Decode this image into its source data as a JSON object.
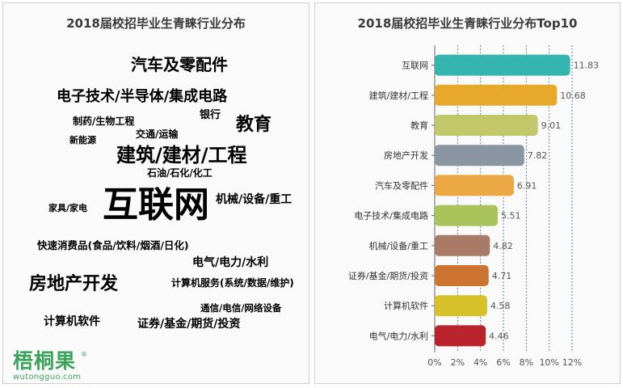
{
  "left": {
    "title": "2018届校招毕业生青睐行业分布",
    "words": [
      {
        "text": "汽车及零配件",
        "color": "#e3a024"
      },
      {
        "text": "电子技术/半导体/集成电路",
        "color": "#8c6a1c"
      },
      {
        "text": "银行",
        "color": "#c9a62a"
      },
      {
        "text": "教育",
        "color": "#b8a82c"
      },
      {
        "text": "制药/生物工程",
        "color": "#c8824a"
      },
      {
        "text": "交通/运输",
        "color": "#b9a870"
      },
      {
        "text": "新能源",
        "color": "#b34040"
      },
      {
        "text": "建筑/建材/工程",
        "color": "#b8801c"
      },
      {
        "text": "石油/石化/化工",
        "color": "#6a9a6a"
      },
      {
        "text": "互联网",
        "color": "#b01f2a"
      },
      {
        "text": "机械/设备/重工",
        "color": "#2f6b6b"
      },
      {
        "text": "家具/家电",
        "color": "#b9bf4a"
      },
      {
        "text": "快速消费品(食品/饮料/烟酒/日化)",
        "color": "#e8b23a"
      },
      {
        "text": "电气/电力/水利",
        "color": "#9a4a4a"
      },
      {
        "text": "房地产开发",
        "color": "#efb51c"
      },
      {
        "text": "计算机服务(系统/数据/维护)",
        "color": "#e0a22a"
      },
      {
        "text": "通信/电信/网络设备",
        "color": "#6a8aa0"
      },
      {
        "text": "计算机软件",
        "color": "#c9874a"
      },
      {
        "text": "证券/基金/期货/投资",
        "color": "#9ab84a"
      }
    ]
  },
  "logo": {
    "name": "梧桐果",
    "reg": "®",
    "url": "wutongguo.com"
  },
  "chart_data": {
    "type": "bar",
    "orientation": "horizontal",
    "title": "2018届校招毕业生青睐行业分布Top10",
    "categories": [
      "互联网",
      "建筑/建材/工程",
      "教育",
      "房地产开发",
      "汽车及零配件",
      "电子技术/集成电路",
      "机械/设备/重工",
      "证券/基金/期货/投资",
      "计算机软件",
      "电气/电力/水利"
    ],
    "values": [
      11.83,
      10.68,
      9.01,
      7.82,
      6.91,
      5.51,
      4.82,
      4.71,
      4.58,
      4.46
    ],
    "value_labels": [
      "11.83",
      "10.68",
      "9.01",
      "7.82",
      "6.91",
      "5.51",
      "4.82",
      "4.71",
      "4.58",
      "4.46"
    ],
    "colors": [
      "#35b5b0",
      "#e8a92a",
      "#c2c86a",
      "#8a96a2",
      "#eba845",
      "#a9c45a",
      "#a97a66",
      "#cc7532",
      "#d7c12a",
      "#b8232c"
    ],
    "xlim": [
      0,
      12
    ],
    "xticks": [
      "0%",
      "2%",
      "4%",
      "6%",
      "8%",
      "10%",
      "12%"
    ],
    "grid": true
  }
}
